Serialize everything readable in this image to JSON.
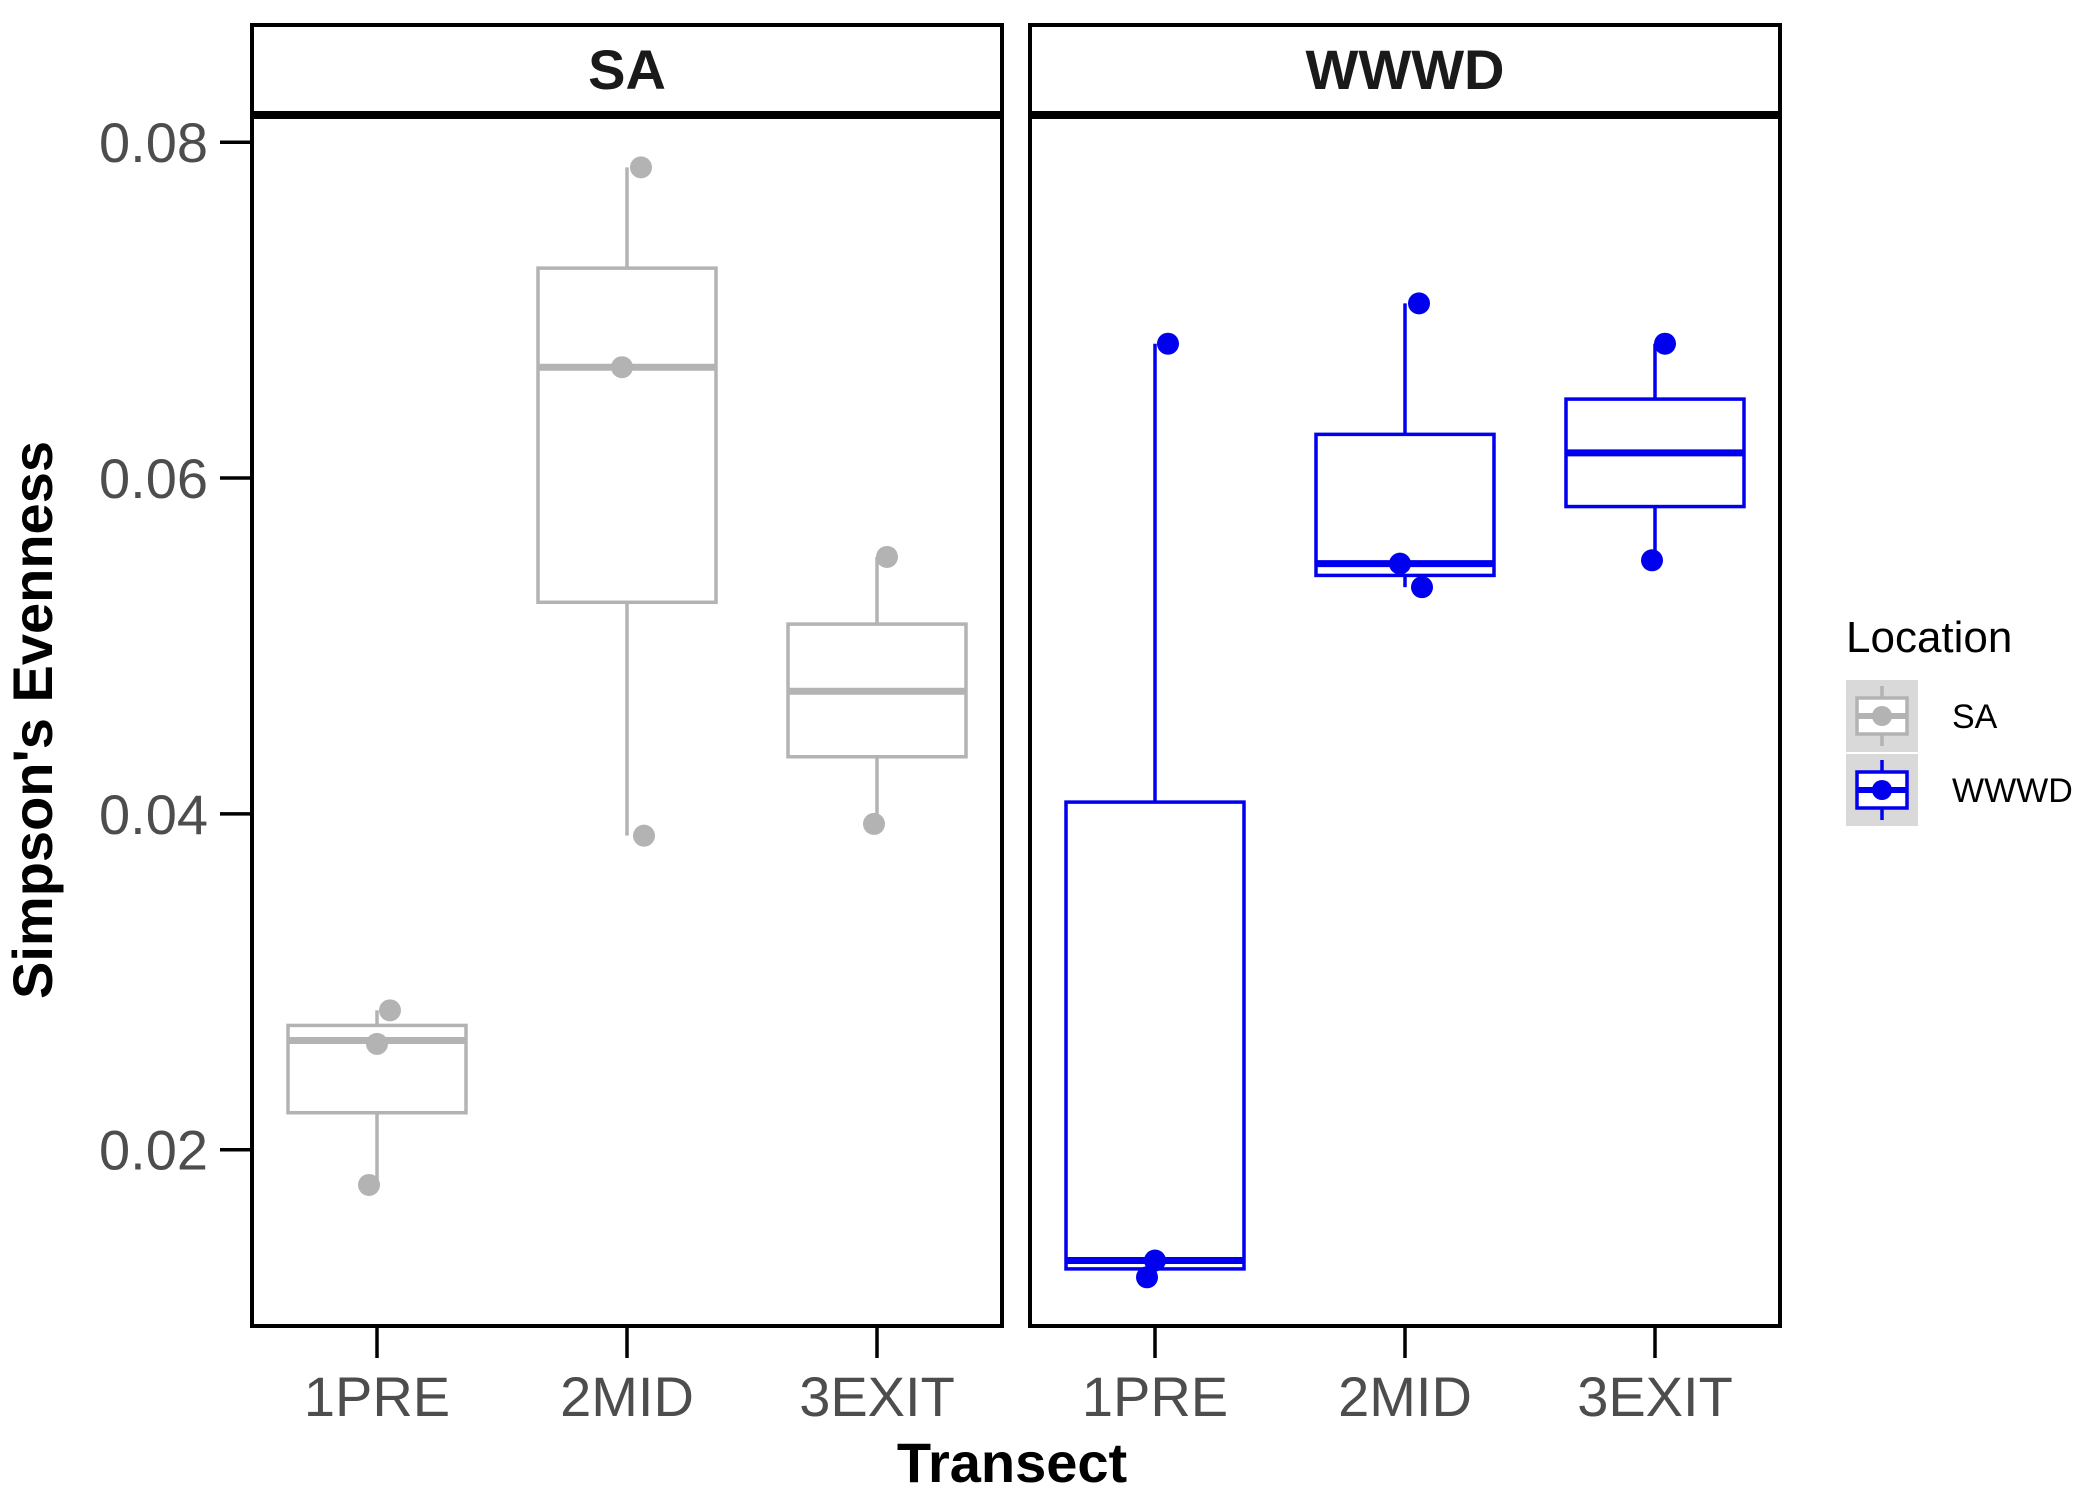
{
  "chart_data": {
    "type": "boxplot",
    "xlabel": "Transect",
    "ylabel": "Simpson's Evenness",
    "ylim": [
      0.0095,
      0.0815
    ],
    "yticks": [
      0.02,
      0.04,
      0.06,
      0.08
    ],
    "ytick_labels": [
      "0.02",
      "0.04",
      "0.06",
      "0.08"
    ],
    "categories": [
      "1PRE",
      "2MID",
      "3EXIT"
    ],
    "legend": {
      "title": "Location",
      "placement": "right",
      "entries": [
        {
          "label": "SA",
          "color": "#b3b3b3"
        },
        {
          "label": "WWWD",
          "color": "#0000ee"
        }
      ]
    },
    "panels": [
      {
        "strip": "SA",
        "color": "#b3b3b3",
        "boxes": [
          {
            "category": "1PRE",
            "min": 0.0178,
            "q1": 0.0222,
            "median": 0.0265,
            "q3": 0.0274,
            "max": 0.0283
          },
          {
            "category": "2MID",
            "min": 0.0387,
            "q1": 0.0526,
            "median": 0.0666,
            "q3": 0.0725,
            "max": 0.0785
          },
          {
            "category": "3EXIT",
            "min": 0.0394,
            "q1": 0.0434,
            "median": 0.0473,
            "q3": 0.0513,
            "max": 0.0553
          }
        ],
        "points": [
          {
            "category": "1PRE",
            "y": 0.0283
          },
          {
            "category": "1PRE",
            "y": 0.0263
          },
          {
            "category": "1PRE",
            "y": 0.0179
          },
          {
            "category": "2MID",
            "y": 0.0785
          },
          {
            "category": "2MID",
            "y": 0.0666
          },
          {
            "category": "2MID",
            "y": 0.0387
          },
          {
            "category": "3EXIT",
            "y": 0.0553
          },
          {
            "category": "3EXIT",
            "y": 0.0394
          }
        ]
      },
      {
        "strip": "WWWD",
        "color": "#0000ee",
        "boxes": [
          {
            "category": "1PRE",
            "min": 0.0124,
            "q1": 0.0129,
            "median": 0.0134,
            "q3": 0.0407,
            "max": 0.068
          },
          {
            "category": "2MID",
            "min": 0.0535,
            "q1": 0.0542,
            "median": 0.0549,
            "q3": 0.0626,
            "max": 0.0704
          },
          {
            "category": "3EXIT",
            "min": 0.0551,
            "q1": 0.0583,
            "median": 0.0615,
            "q3": 0.0647,
            "max": 0.068
          }
        ],
        "points": [
          {
            "category": "1PRE",
            "y": 0.068
          },
          {
            "category": "1PRE",
            "y": 0.0134
          },
          {
            "category": "1PRE",
            "y": 0.0124
          },
          {
            "category": "2MID",
            "y": 0.0704
          },
          {
            "category": "2MID",
            "y": 0.0549
          },
          {
            "category": "2MID",
            "y": 0.0535
          },
          {
            "category": "3EXIT",
            "y": 0.068
          },
          {
            "category": "3EXIT",
            "y": 0.0551
          }
        ]
      }
    ]
  }
}
